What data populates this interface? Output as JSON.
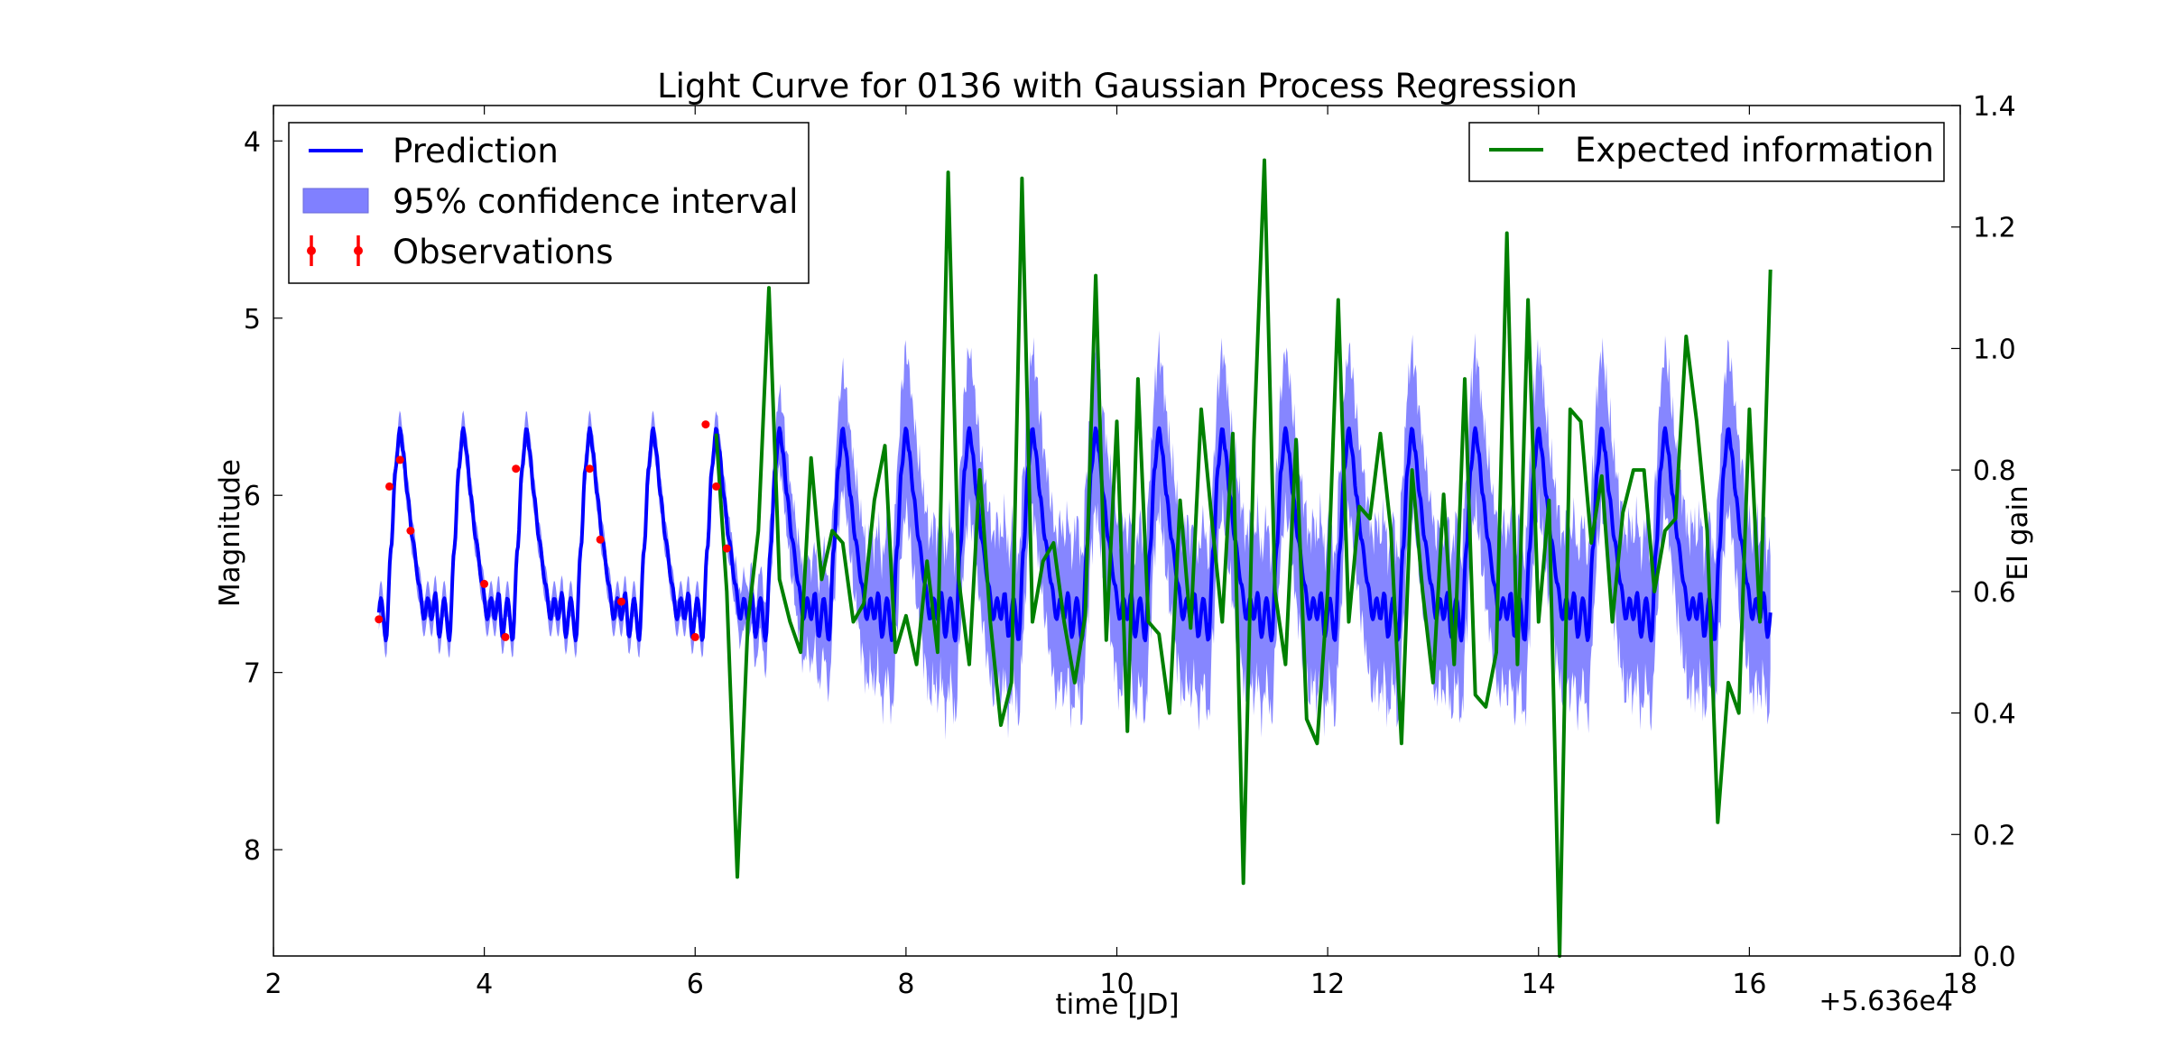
{
  "chart_data": {
    "type": "line",
    "title": "Light Curve for 0136 with Gaussian Process Regression",
    "xlabel": "time [JD]",
    "ylabel": "Magnitude",
    "y2label": "EI gain",
    "x_offset_text": "+5.636e4",
    "xlim": [
      2,
      18
    ],
    "ylim": [
      8.6,
      3.8
    ],
    "y_inverted": true,
    "y2lim": [
      0.0,
      1.4
    ],
    "x_ticks": [
      2,
      4,
      6,
      8,
      10,
      12,
      14,
      16,
      18
    ],
    "y_ticks": [
      4,
      5,
      6,
      7,
      8
    ],
    "y2_ticks": [
      "0.0",
      "0.2",
      "0.4",
      "0.6",
      "0.8",
      "1.0",
      "1.2",
      "1.4"
    ],
    "grid": false,
    "legend_left": {
      "placement": "upper-left",
      "entries": [
        {
          "label": "Prediction",
          "color": "#0000ff"
        },
        {
          "label": "95% confidence interval",
          "color": "#8080ff"
        },
        {
          "label": "Observations",
          "color": "#ff0000"
        }
      ]
    },
    "legend_right": {
      "placement": "upper-right",
      "entries": [
        {
          "label": "Expected information",
          "color": "#008000"
        }
      ]
    },
    "prediction_model": {
      "period": 0.6,
      "phase_ref": 3.2,
      "x_start": 3.0,
      "x_end": 16.2,
      "color": "#0000ff",
      "keypoints": [
        [
          0.0,
          5.62
        ],
        [
          0.05,
          5.75
        ],
        [
          0.12,
          6.0
        ],
        [
          0.2,
          6.25
        ],
        [
          0.3,
          6.5
        ],
        [
          0.38,
          6.7
        ],
        [
          0.44,
          6.58
        ],
        [
          0.5,
          6.7
        ],
        [
          0.56,
          6.55
        ],
        [
          0.62,
          6.8
        ],
        [
          0.7,
          6.58
        ],
        [
          0.78,
          6.82
        ],
        [
          0.86,
          6.3
        ],
        [
          0.93,
          5.85
        ],
        [
          1.0,
          5.62
        ]
      ]
    },
    "confidence_band": {
      "color": "#8080ff",
      "half_width_start": 0.1,
      "half_width_end": 0.45,
      "tight_until": 6.2,
      "grow_until": 8.0
    },
    "observations": {
      "color": "#ff0000",
      "x": [
        3.0,
        3.1,
        3.2,
        3.3,
        4.0,
        4.2,
        4.3,
        5.0,
        5.1,
        5.3,
        6.0,
        6.1,
        6.2,
        6.3
      ],
      "y": [
        6.7,
        5.95,
        5.8,
        6.2,
        6.5,
        6.8,
        5.85,
        5.85,
        6.25,
        6.6,
        6.8,
        5.6,
        5.95,
        6.3
      ]
    },
    "expected_information": {
      "color": "#008000",
      "x": [
        6.2,
        6.3,
        6.4,
        6.5,
        6.6,
        6.7,
        6.8,
        6.9,
        7.0,
        7.1,
        7.2,
        7.3,
        7.4,
        7.5,
        7.6,
        7.7,
        7.8,
        7.9,
        8.0,
        8.1,
        8.2,
        8.3,
        8.4,
        8.5,
        8.6,
        8.7,
        8.8,
        8.9,
        9.0,
        9.1,
        9.2,
        9.3,
        9.4,
        9.5,
        9.6,
        9.7,
        9.8,
        9.9,
        10.0,
        10.1,
        10.2,
        10.3,
        10.4,
        10.5,
        10.6,
        10.7,
        10.8,
        10.9,
        11.0,
        11.1,
        11.2,
        11.3,
        11.4,
        11.5,
        11.6,
        11.7,
        11.8,
        11.9,
        12.0,
        12.1,
        12.2,
        12.3,
        12.4,
        12.5,
        12.6,
        12.7,
        12.8,
        12.9,
        13.0,
        13.1,
        13.2,
        13.3,
        13.4,
        13.5,
        13.6,
        13.7,
        13.8,
        13.9,
        14.0,
        14.1,
        14.2,
        14.3,
        14.4,
        14.5,
        14.6,
        14.7,
        14.8,
        14.9,
        15.0,
        15.1,
        15.2,
        15.3,
        15.4,
        15.5,
        15.6,
        15.7,
        15.8,
        15.9,
        16.0,
        16.1,
        16.2
      ],
      "y": [
        0.86,
        0.6,
        0.13,
        0.55,
        0.7,
        1.1,
        0.62,
        0.55,
        0.5,
        0.82,
        0.62,
        0.7,
        0.68,
        0.55,
        0.58,
        0.75,
        0.84,
        0.5,
        0.56,
        0.48,
        0.65,
        0.5,
        1.29,
        0.62,
        0.48,
        0.8,
        0.55,
        0.38,
        0.45,
        1.28,
        0.55,
        0.65,
        0.68,
        0.55,
        0.45,
        0.56,
        1.12,
        0.52,
        0.88,
        0.37,
        0.95,
        0.55,
        0.53,
        0.4,
        0.75,
        0.54,
        0.9,
        0.72,
        0.55,
        0.86,
        0.12,
        0.85,
        1.31,
        0.6,
        0.48,
        0.85,
        0.39,
        0.35,
        0.6,
        1.08,
        0.55,
        0.74,
        0.72,
        0.86,
        0.7,
        0.35,
        0.8,
        0.6,
        0.45,
        0.76,
        0.48,
        0.95,
        0.43,
        0.41,
        0.5,
        1.19,
        0.48,
        1.08,
        0.55,
        0.75,
        0.0,
        0.9,
        0.88,
        0.68,
        0.79,
        0.55,
        0.73,
        0.8,
        0.8,
        0.6,
        0.7,
        0.72,
        1.02,
        0.88,
        0.7,
        0.22,
        0.45,
        0.4,
        0.9,
        0.55,
        1.13
      ]
    }
  }
}
